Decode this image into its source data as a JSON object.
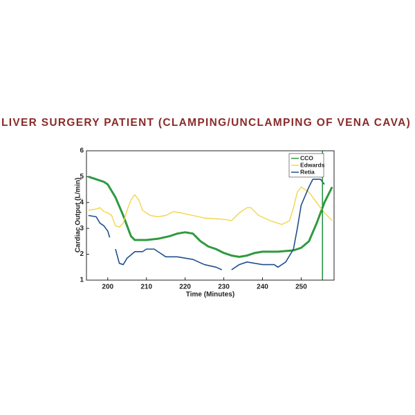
{
  "chart_data": {
    "type": "line",
    "title": "LIVER SURGERY PATIENT (CLAMPING/UNCLAMPING OF VENA CAVA)",
    "xlabel": "Time (Minutes)",
    "ylabel": "Cardiac Output (L/min)",
    "xlim": [
      194.5,
      258.5
    ],
    "ylim": [
      1,
      6
    ],
    "xticks": [
      200,
      210,
      220,
      230,
      240,
      250
    ],
    "yticks": [
      1,
      2,
      3,
      4,
      5,
      6
    ],
    "legend": "upper right",
    "vline": {
      "x": 255.5,
      "color": "#1e8f3a"
    },
    "series": [
      {
        "name": "CCO",
        "color": "#2e9a3e",
        "width": 3,
        "x": [
          195,
          197,
          199,
          200,
          202,
          204,
          206,
          207,
          210,
          213,
          216,
          218,
          220,
          222,
          224,
          226,
          228,
          230,
          232,
          234,
          236,
          238,
          240,
          244,
          248,
          250,
          252,
          254,
          256,
          258
        ],
        "values": [
          5.0,
          4.9,
          4.8,
          4.7,
          4.2,
          3.5,
          2.7,
          2.55,
          2.55,
          2.6,
          2.7,
          2.8,
          2.85,
          2.8,
          2.5,
          2.3,
          2.2,
          2.05,
          1.95,
          1.9,
          1.95,
          2.05,
          2.1,
          2.1,
          2.15,
          2.25,
          2.5,
          3.2,
          4.0,
          4.6
        ]
      },
      {
        "name": "Edwards",
        "color": "#f2d54a",
        "width": 1.4,
        "x": [
          195,
          197,
          198,
          199,
          200,
          201,
          202,
          203,
          204,
          205,
          206,
          207,
          208,
          209,
          211,
          213,
          215,
          217,
          219,
          222,
          225,
          230,
          232,
          234,
          236,
          237,
          239,
          242,
          245,
          247,
          248,
          249,
          250,
          252,
          254,
          256,
          258
        ],
        "values": [
          3.7,
          3.75,
          3.8,
          3.65,
          3.6,
          3.5,
          3.1,
          3.05,
          3.2,
          3.7,
          4.1,
          4.3,
          4.1,
          3.7,
          3.5,
          3.45,
          3.5,
          3.65,
          3.6,
          3.5,
          3.4,
          3.35,
          3.3,
          3.6,
          3.8,
          3.8,
          3.5,
          3.3,
          3.15,
          3.3,
          3.8,
          4.4,
          4.6,
          4.4,
          4.0,
          3.6,
          3.3
        ]
      },
      {
        "name": "Retia",
        "color": "#1f4e8c",
        "width": 1.6,
        "x": [
          195,
          197,
          198,
          199,
          200,
          200.5,
          201,
          202,
          203,
          204,
          205,
          207,
          209,
          210,
          212,
          213,
          215,
          218,
          222,
          225,
          228,
          229.5,
          231,
          232,
          234,
          236,
          240,
          243,
          244,
          246,
          248,
          249,
          250,
          252,
          253,
          255,
          256
        ],
        "values": [
          3.5,
          3.45,
          3.2,
          3.1,
          2.9,
          2.65,
          null,
          2.2,
          1.65,
          1.6,
          1.85,
          2.1,
          2.1,
          2.2,
          2.2,
          2.1,
          1.9,
          1.9,
          1.8,
          1.6,
          1.5,
          1.4,
          null,
          1.4,
          1.6,
          1.7,
          1.6,
          1.6,
          1.5,
          1.7,
          2.2,
          3.0,
          3.9,
          4.6,
          4.9,
          4.9,
          4.7
        ]
      }
    ]
  }
}
